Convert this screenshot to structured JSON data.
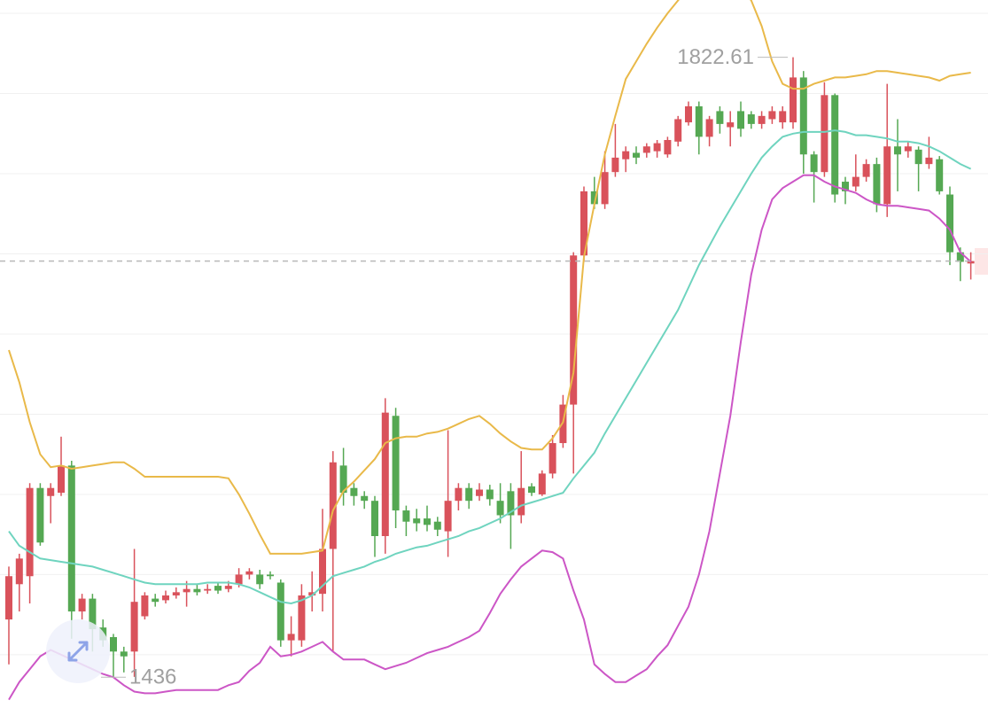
{
  "chart_data": {
    "type": "candlestick",
    "ylim": [
      1416.8,
      1858.3
    ],
    "grid_lines": [
      1450,
      1500,
      1550,
      1600,
      1650,
      1700,
      1750,
      1800,
      1850
    ],
    "grid": true,
    "up_color": "#d9525b",
    "down_color": "#55a853",
    "last_price": 1695.5,
    "open": [
      1472,
      1494,
      1499,
      1554,
      1549,
      1551,
      1568,
      1477,
      1485,
      1467,
      1461,
      1452,
      1452,
      1474,
      1485,
      1484,
      1487,
      1489,
      1491,
      1490,
      1493,
      1491,
      1494,
      1500,
      1500,
      1500,
      1495,
      1459,
      1459,
      1487,
      1488,
      1516,
      1568,
      1554,
      1549,
      1546,
      1524,
      1599,
      1540,
      1535,
      1535,
      1533,
      1527,
      1546,
      1554,
      1549,
      1553,
      1546,
      1552,
      1537,
      1555,
      1550,
      1563,
      1582,
      1606,
      1699,
      1739,
      1731,
      1751,
      1759,
      1763,
      1763,
      1764,
      1762,
      1770,
      1782,
      1792,
      1773,
      1789,
      1779,
      1789,
      1787,
      1781,
      1784,
      1782,
      1782,
      1810,
      1762,
      1751,
      1799,
      1745,
      1742,
      1748,
      1756,
      1731,
      1767,
      1764,
      1765,
      1756,
      1759,
      1737,
      1701,
      1694
    ],
    "high": [
      1505,
      1513,
      1557,
      1557,
      1557,
      1586,
      1571,
      1488,
      1488,
      1472,
      1463,
      1455,
      1516,
      1489,
      1488,
      1490,
      1492,
      1496,
      1494,
      1494,
      1495,
      1496,
      1504,
      1504,
      1503,
      1502,
      1497,
      1474,
      1494,
      1502,
      1541,
      1577,
      1579,
      1557,
      1552,
      1549,
      1610,
      1604,
      1543,
      1541,
      1543,
      1536,
      1590,
      1557,
      1557,
      1557,
      1556,
      1557,
      1557,
      1577,
      1557,
      1565,
      1587,
      1612,
      1701,
      1742,
      1748,
      1764,
      1781,
      1767,
      1767,
      1769,
      1771,
      1773,
      1786,
      1795,
      1795,
      1786,
      1792,
      1789,
      1795,
      1789,
      1789,
      1792,
      1792,
      1822.61,
      1814,
      1764,
      1807,
      1800,
      1748,
      1762,
      1759,
      1760,
      1806,
      1784,
      1770,
      1767,
      1773,
      1761,
      1742,
      1704,
      1701
    ],
    "low": [
      1444,
      1477,
      1482,
      1518,
      1532,
      1549,
      1460,
      1472,
      1452,
      1455,
      1436,
      1439,
      1436.18,
      1472,
      1480,
      1482,
      1485,
      1480,
      1487,
      1488,
      1488,
      1489,
      1492,
      1497,
      1491,
      1497,
      1455,
      1449,
      1455,
      1477,
      1477,
      1452,
      1543,
      1543,
      1541,
      1511,
      1513,
      1529,
      1524,
      1527,
      1527,
      1524,
      1511,
      1540,
      1541,
      1546,
      1543,
      1532,
      1516,
      1532,
      1549,
      1549,
      1560,
      1579,
      1563,
      1695,
      1728,
      1728,
      1748,
      1751,
      1756,
      1760,
      1760,
      1760,
      1767,
      1780,
      1762,
      1767,
      1775,
      1767,
      1773,
      1778,
      1778,
      1781,
      1778,
      1778,
      1750,
      1732,
      1748,
      1732,
      1731,
      1739,
      1745,
      1726,
      1723,
      1739,
      1760,
      1739,
      1753,
      1737,
      1693,
      1683,
      1684
    ],
    "close": [
      1499,
      1510,
      1554,
      1520,
      1554,
      1568,
      1477,
      1485,
      1466,
      1459,
      1452,
      1449,
      1483,
      1487,
      1483,
      1487,
      1489,
      1491,
      1489,
      1491,
      1490,
      1493,
      1500,
      1502,
      1494,
      1499,
      1459,
      1463,
      1487,
      1489,
      1516,
      1570,
      1551,
      1549,
      1546,
      1524,
      1601,
      1540,
      1533,
      1532,
      1531,
      1528,
      1546,
      1554,
      1546,
      1553,
      1547,
      1537,
      1537,
      1554,
      1551,
      1563,
      1582,
      1606,
      1699,
      1739,
      1731,
      1751,
      1760,
      1764,
      1760,
      1767,
      1769,
      1771,
      1784,
      1792,
      1773,
      1784,
      1781,
      1782,
      1778,
      1781,
      1786,
      1789,
      1789,
      1810,
      1762,
      1751,
      1799,
      1737,
      1739,
      1748,
      1756,
      1731,
      1767,
      1762,
      1767,
      1756,
      1760,
      1739,
      1701,
      1695,
      1695.5
    ],
    "bands": [
      {
        "color": "#e9b949",
        "values": [
          1640,
          1620,
          1595,
          1575,
          1567,
          1568,
          1566,
          1567,
          1568,
          1569,
          1570,
          1570,
          1566,
          1561,
          1561,
          1561,
          1561,
          1561,
          1561,
          1561,
          1561,
          1560,
          1550,
          1538,
          1525,
          1513,
          1513,
          1513,
          1513,
          1514,
          1515,
          1540,
          1552,
          1558,
          1565,
          1572,
          1582,
          1585,
          1586,
          1586,
          1588,
          1589,
          1591,
          1594,
          1597,
          1599,
          1594,
          1588,
          1583,
          1579,
          1578,
          1578,
          1585,
          1595,
          1626,
          1698,
          1731,
          1762,
          1786,
          1809,
          1820,
          1831,
          1841,
          1850,
          1858,
          1866,
          1872,
          1875,
          1875,
          1872,
          1866,
          1858,
          1842,
          1820,
          1806,
          1803,
          1803,
          1806,
          1808,
          1810,
          1810,
          1811,
          1812,
          1814,
          1814,
          1813,
          1812,
          1811,
          1810,
          1808,
          1811,
          1812,
          1813
        ]
      },
      {
        "color": "#6fd4bf",
        "values": [
          1527,
          1518,
          1514,
          1510,
          1509,
          1508,
          1507,
          1506,
          1505,
          1503,
          1501,
          1499,
          1497,
          1495,
          1494,
          1494,
          1494,
          1494,
          1494,
          1495,
          1495,
          1495,
          1494,
          1492,
          1489,
          1486,
          1483,
          1482,
          1484,
          1487,
          1493,
          1499,
          1501,
          1503,
          1505,
          1508,
          1510,
          1513,
          1515,
          1517,
          1518,
          1520,
          1522,
          1524,
          1527,
          1529,
          1532,
          1535,
          1539,
          1543,
          1545,
          1547,
          1549,
          1551,
          1560,
          1568,
          1576,
          1588,
          1599,
          1610,
          1621,
          1632,
          1643,
          1654,
          1665,
          1679,
          1693,
          1705,
          1717,
          1728,
          1739,
          1750,
          1760,
          1767,
          1773,
          1775,
          1776,
          1776,
          1776,
          1777,
          1776,
          1774,
          1774,
          1773,
          1772,
          1770,
          1770,
          1769,
          1767,
          1764,
          1760,
          1756,
          1753
        ]
      },
      {
        "color": "#cc56c6",
        "values": [
          1422,
          1433,
          1441,
          1449,
          1453,
          1450,
          1447,
          1444,
          1441,
          1438,
          1436,
          1431,
          1427,
          1426,
          1426,
          1427,
          1428,
          1428,
          1428,
          1428,
          1428,
          1431,
          1433,
          1440,
          1445,
          1455,
          1449,
          1450,
          1452,
          1455,
          1458,
          1452,
          1447,
          1447,
          1447,
          1444,
          1441,
          1443,
          1445,
          1448,
          1451,
          1453,
          1455,
          1458,
          1461,
          1465,
          1476,
          1488,
          1497,
          1505,
          1510,
          1515,
          1514,
          1510,
          1490,
          1472,
          1444,
          1438,
          1433,
          1433,
          1437,
          1441,
          1449,
          1456,
          1468,
          1480,
          1500,
          1527,
          1563,
          1599,
          1645,
          1687,
          1715,
          1734,
          1741,
          1745,
          1749,
          1749,
          1745,
          1742,
          1740,
          1738,
          1734,
          1731,
          1730,
          1730,
          1729,
          1728,
          1727,
          1722,
          1715,
          1701,
          1695
        ]
      }
    ]
  }
}
